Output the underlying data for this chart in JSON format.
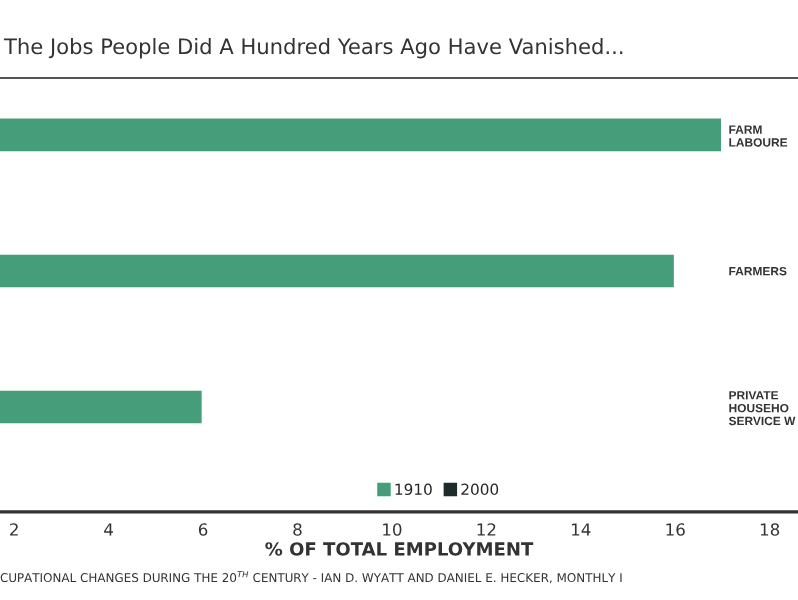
{
  "chart_data": {
    "type": "bar",
    "orientation": "horizontal",
    "title": "The Jobs People Did A Hundred Years Ago Have Vanished...",
    "xlabel": "% OF TOTAL EMPLOYMENT",
    "categories": [
      "FARM\nLABOURE",
      "FARMERS",
      "PRIVATE\nHOUSEHO\nSERVICE W"
    ],
    "series": [
      {
        "name": "1910",
        "color": "#459e79",
        "values": [
          17.0,
          16.0,
          6.0
        ]
      },
      {
        "name": "2000",
        "color": "#1f2b2b",
        "values": [
          null,
          null,
          null
        ]
      }
    ],
    "xlim": [
      1.7,
      18.6
    ],
    "xticks": [
      2,
      4,
      6,
      8,
      10,
      12,
      14,
      16,
      18
    ],
    "legend": "bottom",
    "grid": false,
    "annotations": [
      "CUPATIONAL CHANGES DURING THE 20$^{TH}$ CENTURY - IAN D. WYATT AND DANIEL E. HECKER, MONTHLY I"
    ]
  }
}
